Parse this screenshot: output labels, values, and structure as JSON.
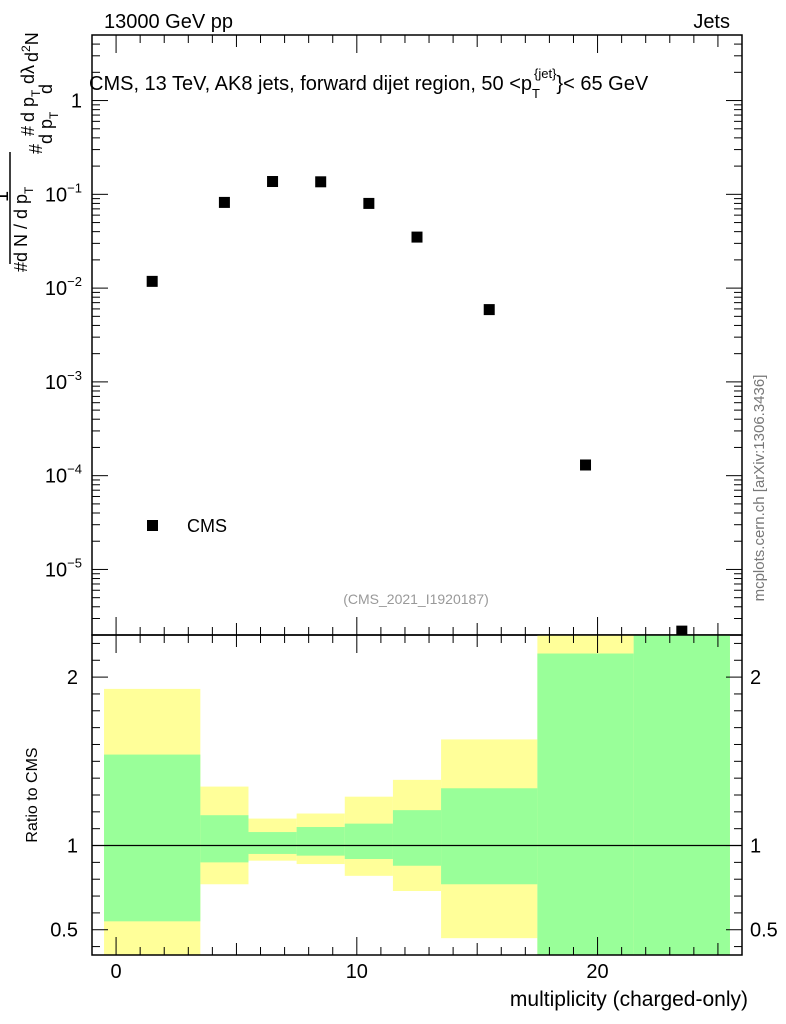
{
  "header": {
    "energy_label": "13000 GeV pp",
    "category_label": "Jets"
  },
  "chart_data": [
    {
      "type": "scatter",
      "title_main": "CMS, 13 TeV, AK8 jets, forward dijet region, 50 <p",
      "title_sub": "T",
      "title_sup": "{jet}",
      "title_end": "}< 65 GeV",
      "y_scale": "log",
      "ylim": [
        2e-06,
        5
      ],
      "xlim": [
        -1,
        26
      ],
      "ylabel": "1/N dN/dp_T d²N/dp_T dλ",
      "yticks": [
        {
          "value": 1e-05,
          "base": "10",
          "exp": "−5"
        },
        {
          "value": 0.0001,
          "base": "10",
          "exp": "−4"
        },
        {
          "value": 0.001,
          "base": "10",
          "exp": "−3"
        },
        {
          "value": 0.01,
          "base": "10",
          "exp": "−2"
        },
        {
          "value": 0.1,
          "base": "10",
          "exp": "−1"
        },
        {
          "value": 1,
          "base": "1",
          "exp": ""
        }
      ],
      "series": [
        {
          "name": "CMS",
          "x": [
            1.5,
            4.5,
            6.5,
            8.5,
            10.5,
            12.5,
            15.5,
            19.5,
            23.5
          ],
          "y": [
            0.0118,
            0.082,
            0.137,
            0.136,
            0.08,
            0.035,
            0.0059,
            0.00013,
            2.2e-06
          ]
        }
      ],
      "legend": {
        "label": "CMS",
        "position": "bottom-left"
      },
      "analysis_label": "(CMS_2021_I1920187)"
    },
    {
      "type": "area",
      "ylabel": "Ratio to CMS",
      "xlabel": "multiplicity (charged-only)",
      "xlim": [
        -1,
        26
      ],
      "ylim": [
        0.35,
        2.25
      ],
      "xticks": [
        0,
        10,
        20
      ],
      "yticks": [
        0.5,
        1,
        2
      ],
      "reference_line": 1,
      "bands": {
        "edges": [
          -0.5,
          3.5,
          5.5,
          7.5,
          9.5,
          11.5,
          13.5,
          17.5,
          21.5,
          25.5
        ],
        "total_uncertainty": [
          [
            0.35,
            1.93
          ],
          [
            0.77,
            1.35
          ],
          [
            0.91,
            1.16
          ],
          [
            0.89,
            1.19
          ],
          [
            0.82,
            1.29
          ],
          [
            0.73,
            1.39
          ],
          [
            0.45,
            1.63
          ],
          [
            0.35,
            2.25
          ],
          [
            0.35,
            2.25
          ]
        ],
        "stat_uncertainty": [
          [
            0.55,
            1.54
          ],
          [
            0.9,
            1.18
          ],
          [
            0.95,
            1.08
          ],
          [
            0.94,
            1.11
          ],
          [
            0.92,
            1.13
          ],
          [
            0.88,
            1.21
          ],
          [
            0.77,
            1.34
          ],
          [
            0.35,
            2.14
          ],
          [
            0.35,
            2.25
          ]
        ]
      }
    }
  ],
  "watermark": "mcplots.cern.ch [arXiv:1306.3436]",
  "colors": {
    "total_band": "#ffff99",
    "stat_band": "#99ff99",
    "marker": "#000000",
    "axis": "#000000",
    "watermark": "#777777",
    "analysis": "#999999"
  }
}
